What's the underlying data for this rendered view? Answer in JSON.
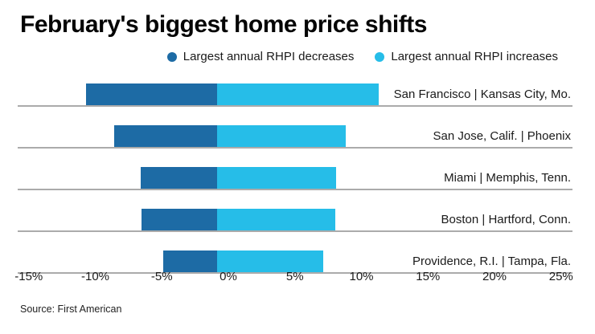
{
  "title": "February's biggest home price shifts",
  "legend": [
    {
      "label": "Largest annual RHPI decreases",
      "color": "#1d6ba5"
    },
    {
      "label": "Largest annual RHPI increases",
      "color": "#26bde8"
    }
  ],
  "source": "Source: First American",
  "colors": {
    "decrease": "#1d6ba5",
    "increase": "#26bde8",
    "baseline": "#ababab"
  },
  "chart_data": {
    "type": "bar",
    "orientation": "horizontal",
    "stacked": true,
    "title": "February's biggest home price shifts",
    "categories": [
      "San Francisco | Kansas City, Mo.",
      "San Jose, Calif. | Phoenix",
      "Miami | Memphis, Tenn.",
      "Boston | Hartford, Conn.",
      "Providence, R.I. | Tampa, Fla."
    ],
    "series": [
      {
        "name": "Largest annual RHPI decreases",
        "values": [
          -9.9,
          -7.8,
          -5.8,
          -5.7,
          -4.1
        ]
      },
      {
        "name": "Largest annual RHPI increases",
        "values": [
          12.2,
          9.7,
          9.0,
          8.9,
          8.0
        ]
      }
    ],
    "x_ticks": [
      "-15%",
      "-10%",
      "-5%",
      "0%",
      "5%",
      "10%",
      "15%",
      "20%",
      "25%"
    ],
    "x_tick_values": [
      -15,
      -10,
      -5,
      0,
      5,
      10,
      15,
      20,
      25
    ],
    "xlim": [
      -15,
      25
    ],
    "unit": "%",
    "legend_position": "top-right",
    "grid": false,
    "xlabel": "",
    "ylabel": ""
  }
}
